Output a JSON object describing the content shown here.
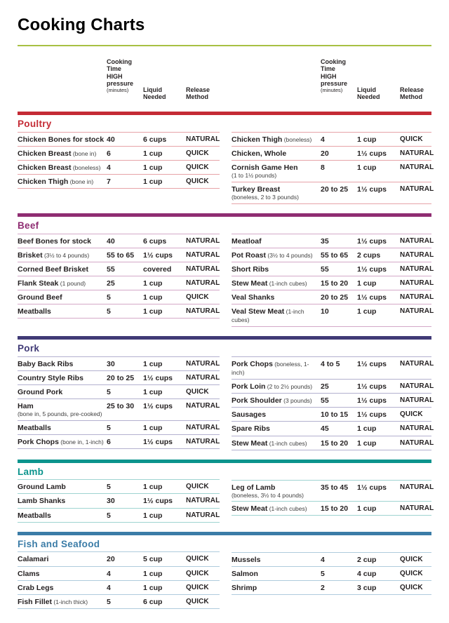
{
  "title": "Cooking Charts",
  "colors": {
    "title_rule": "#a8c043",
    "text": "#231f20"
  },
  "column_headers": {
    "time": "Cooking\nTime\nHIGH\npressure",
    "time_sub": "(minutes)",
    "liquid": "Liquid\nNeeded",
    "release": "Release\nMethod"
  },
  "sections": [
    {
      "name": "Poultry",
      "color": "#c42b35",
      "tint": "#e7a3a8",
      "left": [
        {
          "item": "Chicken Bones for stock",
          "desc": "",
          "desc_below": false,
          "time": "40",
          "liquid": "6 cups",
          "release": "NATURAL"
        },
        {
          "item": "Chicken Breast",
          "desc": "(bone in)",
          "desc_below": false,
          "time": "6",
          "liquid": "1 cup",
          "release": "QUICK"
        },
        {
          "item": "Chicken Breast",
          "desc": "(boneless)",
          "desc_below": false,
          "time": "4",
          "liquid": "1 cup",
          "release": "QUICK"
        },
        {
          "item": "Chicken Thigh",
          "desc": "(bone in)",
          "desc_below": false,
          "time": "7",
          "liquid": "1 cup",
          "release": "QUICK"
        }
      ],
      "right": [
        {
          "item": "Chicken Thigh",
          "desc": "(boneless)",
          "desc_below": false,
          "time": "4",
          "liquid": "1 cup",
          "release": "QUICK"
        },
        {
          "item": "Chicken, Whole",
          "desc": "",
          "desc_below": false,
          "time": "20",
          "liquid": "1½ cups",
          "release": "NATURAL"
        },
        {
          "item": "Cornish Game Hen",
          "desc": "(1 to 1½ pounds)",
          "desc_below": true,
          "time": "8",
          "liquid": "1 cup",
          "release": "NATURAL"
        },
        {
          "item": "Turkey Breast",
          "desc": "(boneless, 2 to 3 pounds)",
          "desc_below": true,
          "time": "20 to 25",
          "liquid": "1½ cups",
          "release": "NATURAL"
        }
      ]
    },
    {
      "name": "Beef",
      "color": "#8f2d72",
      "tint": "#d4a8c8",
      "left": [
        {
          "item": "Beef Bones for stock",
          "desc": "",
          "desc_below": false,
          "time": "40",
          "liquid": "6 cups",
          "release": "NATURAL"
        },
        {
          "item": "Brisket",
          "desc": "(3½ to 4 pounds)",
          "desc_below": false,
          "time": "55 to 65",
          "liquid": "1½ cups",
          "release": "NATURAL"
        },
        {
          "item": "Corned Beef Brisket",
          "desc": "",
          "desc_below": false,
          "time": "55",
          "liquid": "covered",
          "release": "NATURAL"
        },
        {
          "item": "Flank Steak",
          "desc": "(1 pound)",
          "desc_below": false,
          "time": "25",
          "liquid": "1 cup",
          "release": "NATURAL"
        },
        {
          "item": "Ground Beef",
          "desc": "",
          "desc_below": false,
          "time": "5",
          "liquid": "1 cup",
          "release": "QUICK"
        },
        {
          "item": "Meatballs",
          "desc": "",
          "desc_below": false,
          "time": "5",
          "liquid": "1 cup",
          "release": "NATURAL"
        }
      ],
      "right": [
        {
          "item": "Meatloaf",
          "desc": "",
          "desc_below": false,
          "time": "35",
          "liquid": "1½ cups",
          "release": "NATURAL"
        },
        {
          "item": "Pot Roast",
          "desc": "(3½ to 4 pounds)",
          "desc_below": false,
          "time": "55 to 65",
          "liquid": "2 cups",
          "release": "NATURAL"
        },
        {
          "item": "Short Ribs",
          "desc": "",
          "desc_below": false,
          "time": "55",
          "liquid": "1½ cups",
          "release": "NATURAL"
        },
        {
          "item": "Stew Meat",
          "desc": "(1-inch cubes)",
          "desc_below": false,
          "time": "15 to 20",
          "liquid": "1 cup",
          "release": "NATURAL"
        },
        {
          "item": "Veal Shanks",
          "desc": "",
          "desc_below": false,
          "time": "20 to 25",
          "liquid": "1½ cups",
          "release": "NATURAL"
        },
        {
          "item": "Veal Stew Meat",
          "desc": "(1-inch cubes)",
          "desc_below": false,
          "time": "10",
          "liquid": "1 cup",
          "release": "NATURAL"
        }
      ]
    },
    {
      "name": "Pork",
      "color": "#403a76",
      "tint": "#b3b0cf",
      "left": [
        {
          "item": "Baby Back Ribs",
          "desc": "",
          "desc_below": false,
          "time": "30",
          "liquid": "1 cup",
          "release": "NATURAL"
        },
        {
          "item": "Country Style Ribs",
          "desc": "",
          "desc_below": false,
          "time": "20 to 25",
          "liquid": "1½ cups",
          "release": "NATURAL"
        },
        {
          "item": "Ground Pork",
          "desc": "",
          "desc_below": false,
          "time": "5",
          "liquid": "1 cup",
          "release": "QUICK"
        },
        {
          "item": "Ham",
          "desc": "(bone in, 5 pounds, pre-cooked)",
          "desc_below": true,
          "time": "25 to 30",
          "liquid": "1½ cups",
          "release": "NATURAL"
        },
        {
          "item": "Meatballs",
          "desc": "",
          "desc_below": false,
          "time": "5",
          "liquid": "1 cup",
          "release": "NATURAL"
        },
        {
          "item": "Pork Chops",
          "desc": "(bone in, 1-inch)",
          "desc_below": false,
          "time": "6",
          "liquid": "1½ cups",
          "release": "NATURAL"
        }
      ],
      "right": [
        {
          "item": "Pork Chops",
          "desc": "(boneless, 1-inch)",
          "desc_below": false,
          "time": "4 to 5",
          "liquid": "1½ cups",
          "release": "NATURAL"
        },
        {
          "item": "Pork Loin",
          "desc": "(2 to 2½ pounds)",
          "desc_below": false,
          "time": "25",
          "liquid": "1½ cups",
          "release": "NATURAL"
        },
        {
          "item": "Pork Shoulder",
          "desc": "(3 pounds)",
          "desc_below": false,
          "time": "55",
          "liquid": "1½ cups",
          "release": "NATURAL"
        },
        {
          "item": "Sausages",
          "desc": "",
          "desc_below": false,
          "time": "10 to 15",
          "liquid": "1½ cups",
          "release": "QUICK"
        },
        {
          "item": "Spare Ribs",
          "desc": "",
          "desc_below": false,
          "time": "45",
          "liquid": "1 cup",
          "release": "NATURAL"
        },
        {
          "item": "Stew Meat",
          "desc": "(1-inch cubes)",
          "desc_below": false,
          "time": "15 to 20",
          "liquid": "1 cup",
          "release": "NATURAL"
        }
      ]
    },
    {
      "name": "Lamb",
      "color": "#0b948d",
      "tint": "#9fd4d1",
      "left": [
        {
          "item": "Ground Lamb",
          "desc": "",
          "desc_below": false,
          "time": "5",
          "liquid": "1 cup",
          "release": "QUICK"
        },
        {
          "item": "Lamb Shanks",
          "desc": "",
          "desc_below": false,
          "time": "30",
          "liquid": "1½ cups",
          "release": "NATURAL"
        },
        {
          "item": "Meatballs",
          "desc": "",
          "desc_below": false,
          "time": "5",
          "liquid": "1 cup",
          "release": "NATURAL"
        }
      ],
      "right": [
        {
          "item": "Leg of Lamb",
          "desc": "(boneless, 3½ to 4 pounds)",
          "desc_below": true,
          "time": "35 to 45",
          "liquid": "1½ cups",
          "release": "NATURAL"
        },
        {
          "item": "Stew Meat",
          "desc": "(1-inch cubes)",
          "desc_below": false,
          "time": "15 to 20",
          "liquid": "1 cup",
          "release": "NATURAL"
        }
      ]
    },
    {
      "name": "Fish and Seafood",
      "color": "#3b7ca7",
      "tint": "#afcbdd",
      "left": [
        {
          "item": "Calamari",
          "desc": "",
          "desc_below": false,
          "time": "20",
          "liquid": "5 cup",
          "release": "QUICK"
        },
        {
          "item": "Clams",
          "desc": "",
          "desc_below": false,
          "time": "4",
          "liquid": "1 cup",
          "release": "QUICK"
        },
        {
          "item": "Crab Legs",
          "desc": "",
          "desc_below": false,
          "time": "4",
          "liquid": "1 cup",
          "release": "QUICK"
        },
        {
          "item": "Fish Fillet",
          "desc": "(1-inch thick)",
          "desc_below": false,
          "time": "5",
          "liquid": "6 cup",
          "release": "QUICK"
        }
      ],
      "right": [
        {
          "item": "Mussels",
          "desc": "",
          "desc_below": false,
          "time": "4",
          "liquid": "2 cup",
          "release": "QUICK"
        },
        {
          "item": "Salmon",
          "desc": "",
          "desc_below": false,
          "time": "5",
          "liquid": "4 cup",
          "release": "QUICK"
        },
        {
          "item": "Shrimp",
          "desc": "",
          "desc_below": false,
          "time": "2",
          "liquid": "3 cup",
          "release": "QUICK"
        }
      ]
    }
  ]
}
